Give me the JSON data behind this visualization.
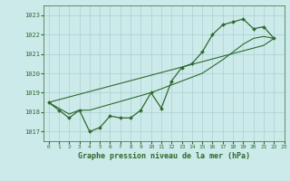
{
  "title": "Graphe pression niveau de la mer (hPa)",
  "background_color": "#cceaea",
  "grid_color": "#aacfcf",
  "line_color": "#2d6a2d",
  "y_detail": [
    1018.5,
    1018.1,
    1017.7,
    1018.1,
    1017.0,
    1017.2,
    1017.8,
    1017.7,
    1017.7,
    1018.1,
    1019.0,
    1018.2,
    1019.6,
    1020.3,
    1020.5,
    1021.1,
    1022.0,
    1022.5,
    1022.65,
    1022.8,
    1022.3,
    1022.4,
    1021.8
  ],
  "y_trend": [
    1018.5,
    1018.2,
    1017.9,
    1018.1,
    1018.1,
    1018.25,
    1018.4,
    1018.55,
    1018.7,
    1018.85,
    1019.0,
    1019.2,
    1019.4,
    1019.6,
    1019.8,
    1020.0,
    1020.35,
    1020.7,
    1021.1,
    1021.5,
    1021.8,
    1021.9,
    1021.8
  ],
  "y_linear": [
    1018.5,
    1018.64,
    1018.78,
    1018.92,
    1019.06,
    1019.2,
    1019.34,
    1019.48,
    1019.62,
    1019.76,
    1019.9,
    1020.04,
    1020.18,
    1020.32,
    1020.46,
    1020.6,
    1020.74,
    1020.88,
    1021.02,
    1021.16,
    1021.3,
    1021.44,
    1021.8
  ],
  "ylim": [
    1016.5,
    1023.5
  ],
  "xlim": [
    -0.5,
    23
  ],
  "yticks": [
    1017,
    1018,
    1019,
    1020,
    1021,
    1022,
    1023
  ],
  "xticks": [
    0,
    1,
    2,
    3,
    4,
    5,
    6,
    7,
    8,
    9,
    10,
    11,
    12,
    13,
    14,
    15,
    16,
    17,
    18,
    19,
    20,
    21,
    22,
    23
  ]
}
